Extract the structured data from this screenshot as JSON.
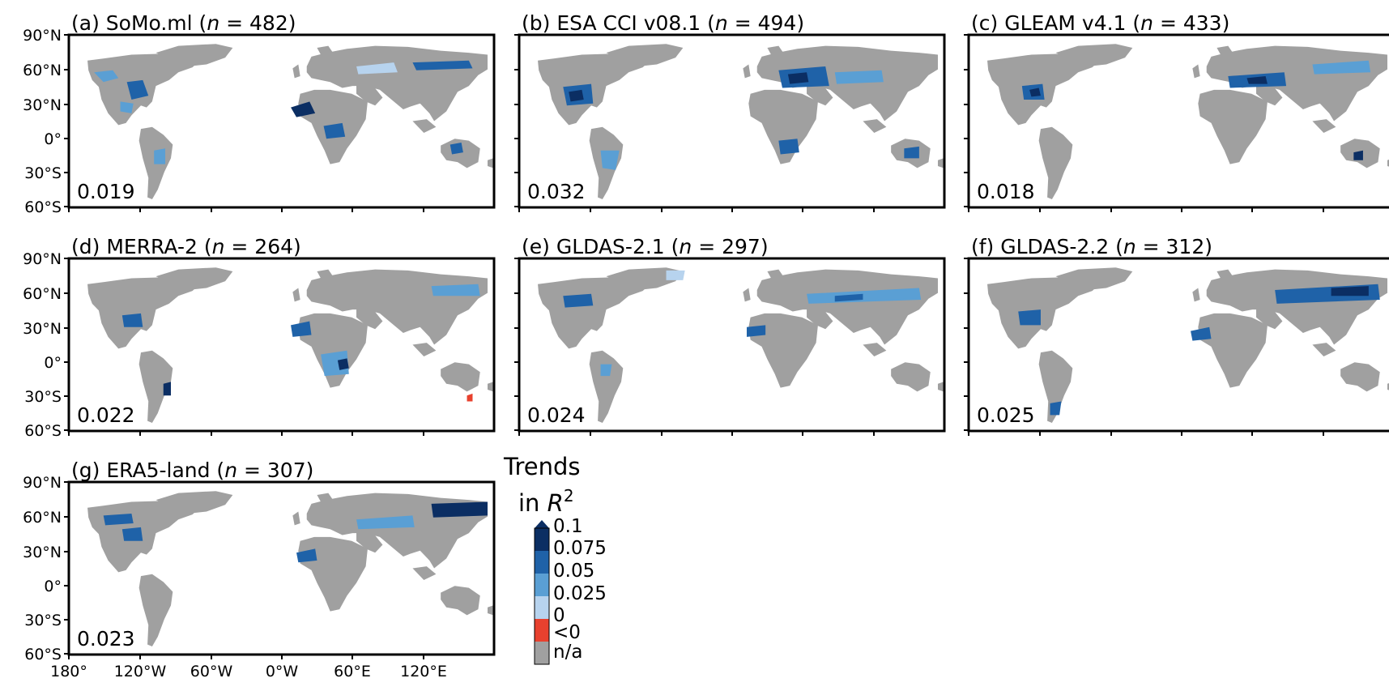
{
  "figure": {
    "latitude_ticks": [
      "90°N",
      "60°N",
      "30°N",
      "0°",
      "30°S",
      "60°S"
    ],
    "longitude_ticks": [
      "180°",
      "120°W",
      "60°W",
      "0°W",
      "60°E",
      "120°E"
    ],
    "map_colors": {
      "land": "#a0a0a0",
      "ocean": "#ffffff"
    },
    "panels": [
      {
        "letter": "(a) SoMo.ml (",
        "n": "482",
        "value": "0.019",
        "style": "a"
      },
      {
        "letter": "(b) ESA CCI v08.1 (",
        "n": "494",
        "value": "0.032",
        "style": "b"
      },
      {
        "letter": "(c) GLEAM v4.1 (",
        "n": "433",
        "value": "0.018",
        "style": "c"
      },
      {
        "letter": "(d) MERRA-2 (",
        "n": "264",
        "value": "0.022",
        "style": "d"
      },
      {
        "letter": "(e) GLDAS-2.1 (",
        "n": "297",
        "value": "0.024",
        "style": "e"
      },
      {
        "letter": "(f) GLDAS-2.2 (",
        "n": "312",
        "value": "0.025",
        "style": "f"
      },
      {
        "letter": "(g) ERA5-land (",
        "n": "307",
        "value": "0.023",
        "style": "g"
      }
    ],
    "colorbar": {
      "title_line1": "Trends",
      "title_line2": "in ",
      "title_symbol": "R",
      "title_sup": "2",
      "levels": [
        {
          "label": "0.1",
          "color": "#0b2e63"
        },
        {
          "label": "0.075",
          "color": "#1f62a8"
        },
        {
          "label": "0.05",
          "color": "#5a9fd4"
        },
        {
          "label": "0.025",
          "color": "#b7d3ee"
        },
        {
          "label": "0",
          "color": "#e8412e"
        },
        {
          "label": "<0",
          "color": "#a0a0a0"
        },
        {
          "label": "n/a",
          "color": ""
        }
      ]
    }
  }
}
